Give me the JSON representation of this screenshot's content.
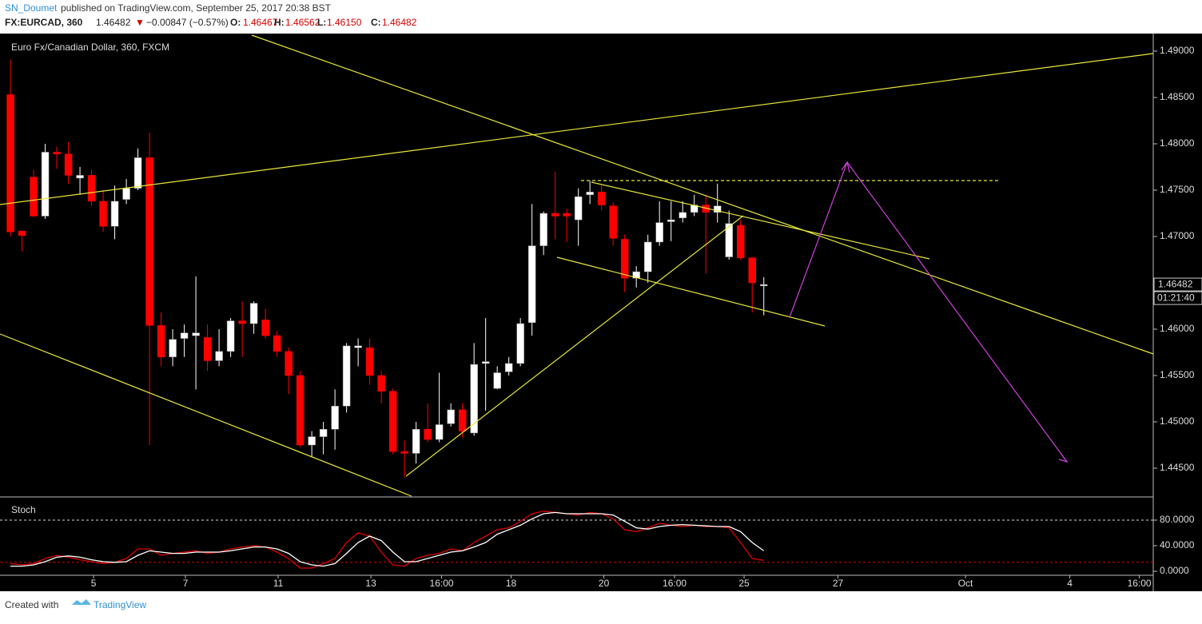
{
  "header": {
    "author": "SN_Doumet",
    "published": "published on TradingView.com, September 25, 2017 20:38 BST",
    "symbol": "FX:EURCAD, 360",
    "last": "1.46482",
    "arrow": "▼",
    "change": "−0.00847 (−0.57%)",
    "o_label": "O:",
    "o": "1.46467",
    "h_label": "H:",
    "h": "1.46562",
    "l_label": "L:",
    "l": "1.46150",
    "c_label": "C:",
    "c": "1.46482"
  },
  "footer": {
    "created": "Created with",
    "brand": "TradingView"
  },
  "chart_data": [
    {
      "type": "candlestick",
      "title": "Euro Fx/Canadian Dollar, 360, FXCM",
      "open": [
        1.4853,
        1.4706,
        1.4764,
        1.4722,
        1.4791,
        1.4789,
        1.4763,
        1.4766,
        1.4738,
        1.4711,
        1.474,
        1.4752,
        1.4785,
        1.4604,
        1.457,
        1.459,
        1.4593,
        1.4591,
        1.4566,
        1.4576,
        1.4609,
        1.4606,
        1.461,
        1.4593,
        1.4576,
        1.455,
        1.4475,
        1.4484,
        1.4492,
        1.4517,
        1.458,
        1.458,
        1.455,
        1.4533,
        1.4468,
        1.4466,
        1.4492,
        1.4481,
        1.4498,
        1.4513,
        1.4488,
        1.4563,
        1.4536,
        1.4554,
        1.4563,
        1.4607,
        1.469,
        1.4725,
        1.4725,
        1.4718,
        1.4745,
        1.4748,
        1.4733,
        1.4697,
        1.4655,
        1.4662,
        1.4694,
        1.4716,
        1.472,
        1.4726,
        1.4734,
        1.4726,
        1.4678,
        1.4712,
        1.4677,
        1.46467
      ],
      "high": [
        1.4891,
        1.4706,
        1.4772,
        1.48,
        1.4797,
        1.4802,
        1.4775,
        1.4772,
        1.475,
        1.4755,
        1.4762,
        1.4795,
        1.4812,
        1.4618,
        1.46,
        1.4605,
        1.4657,
        1.4605,
        1.46,
        1.4612,
        1.463,
        1.463,
        1.4622,
        1.4598,
        1.458,
        1.4555,
        1.449,
        1.45,
        1.4535,
        1.4585,
        1.459,
        1.459,
        1.4555,
        1.4536,
        1.448,
        1.45,
        1.452,
        1.4553,
        1.452,
        1.452,
        1.4585,
        1.4612,
        1.456,
        1.457,
        1.4612,
        1.4735,
        1.4727,
        1.477,
        1.473,
        1.4752,
        1.476,
        1.4755,
        1.4737,
        1.4702,
        1.4668,
        1.4702,
        1.4738,
        1.4738,
        1.4738,
        1.4745,
        1.4745,
        1.4757,
        1.4728,
        1.4718,
        1.4678,
        1.46562
      ],
      "low": [
        1.47,
        1.4684,
        1.4721,
        1.4719,
        1.4773,
        1.4757,
        1.4745,
        1.4733,
        1.4705,
        1.4697,
        1.4735,
        1.475,
        1.4475,
        1.456,
        1.456,
        1.457,
        1.4535,
        1.4555,
        1.456,
        1.457,
        1.457,
        1.4595,
        1.459,
        1.457,
        1.453,
        1.4473,
        1.4462,
        1.4465,
        1.447,
        1.451,
        1.456,
        1.454,
        1.452,
        1.4465,
        1.444,
        1.4455,
        1.4478,
        1.4478,
        1.4495,
        1.4483,
        1.4485,
        1.4512,
        1.4535,
        1.455,
        1.456,
        1.4593,
        1.468,
        1.4697,
        1.4694,
        1.469,
        1.4735,
        1.4728,
        1.469,
        1.464,
        1.4645,
        1.465,
        1.469,
        1.4695,
        1.4715,
        1.4722,
        1.466,
        1.4715,
        1.4675,
        1.4675,
        1.4618,
        1.4615
      ],
      "close": [
        1.4705,
        1.4701,
        1.4722,
        1.4791,
        1.4789,
        1.4766,
        1.4766,
        1.4738,
        1.4711,
        1.4738,
        1.4752,
        1.4785,
        1.4604,
        1.457,
        1.4589,
        1.4596,
        1.4596,
        1.4566,
        1.4576,
        1.4609,
        1.4606,
        1.4628,
        1.4593,
        1.4576,
        1.455,
        1.4475,
        1.4484,
        1.4492,
        1.4517,
        1.4582,
        1.4582,
        1.455,
        1.4533,
        1.4468,
        1.4466,
        1.4492,
        1.4481,
        1.4497,
        1.4513,
        1.449,
        1.4562,
        1.4565,
        1.4553,
        1.4563,
        1.4606,
        1.469,
        1.4725,
        1.4722,
        1.4722,
        1.4743,
        1.4748,
        1.4734,
        1.4698,
        1.4655,
        1.4662,
        1.4694,
        1.4715,
        1.4718,
        1.4726,
        1.4734,
        1.4726,
        1.4733,
        1.4714,
        1.4677,
        1.465,
        1.46482
      ],
      "up_color": "#ffffff",
      "down_color": "#ff0000",
      "ylim": [
        1.441983,
        1.491724
      ],
      "yticks": [
        {
          "value": 1.49,
          "label": "1.49000"
        },
        {
          "value": 1.485,
          "label": "1.48500"
        },
        {
          "value": 1.48,
          "label": "1.48000"
        },
        {
          "value": 1.475,
          "label": "1.47500"
        },
        {
          "value": 1.47,
          "label": "1.47000"
        },
        {
          "value": 1.46,
          "label": "1.46000"
        },
        {
          "value": 1.455,
          "label": "1.45500"
        },
        {
          "value": 1.45,
          "label": "1.45000"
        },
        {
          "value": 1.445,
          "label": "1.44500"
        }
      ],
      "last_price_label": "1.46482",
      "countdown": "01:21:40",
      "xlim": [
        -0.9,
        98.6
      ],
      "xticks": [
        {
          "value": 7.17,
          "label": "5"
        },
        {
          "value": 15.1,
          "label": "7"
        },
        {
          "value": 23.1,
          "label": "11"
        },
        {
          "value": 31.1,
          "label": "13"
        },
        {
          "value": 37.2,
          "label": "16:00"
        },
        {
          "value": 43.2,
          "label": "18"
        },
        {
          "value": 51.2,
          "label": "20"
        },
        {
          "value": 57.3,
          "label": "16:00"
        },
        {
          "value": 63.3,
          "label": "25"
        },
        {
          "value": 71.4,
          "label": "27"
        },
        {
          "value": 82.4,
          "label": "Oct"
        },
        {
          "value": 91.4,
          "label": "4"
        },
        {
          "value": 97.4,
          "label": "16:00"
        }
      ]
    },
    {
      "type": "line",
      "title": "Stoch",
      "series": [
        {
          "name": "%K",
          "color": "#e00000",
          "values": [
            12,
            10,
            12,
            20,
            25,
            22,
            18,
            15,
            12,
            14,
            20,
            35,
            35,
            25,
            28,
            30,
            32,
            28,
            30,
            35,
            38,
            40,
            38,
            30,
            20,
            5,
            5,
            12,
            20,
            45,
            60,
            55,
            30,
            10,
            8,
            20,
            25,
            28,
            35,
            32,
            45,
            55,
            65,
            68,
            78,
            90,
            94,
            92,
            90,
            88,
            92,
            90,
            82,
            65,
            62,
            68,
            75,
            72,
            70,
            72,
            70,
            70,
            68,
            45,
            20,
            17
          ]
        },
        {
          "name": "%D",
          "color": "#ffffff",
          "values": [
            8,
            8,
            10,
            15,
            22,
            24,
            22,
            18,
            15,
            14,
            15,
            25,
            32,
            30,
            28,
            28,
            30,
            30,
            30,
            32,
            35,
            38,
            38,
            35,
            28,
            15,
            10,
            8,
            12,
            28,
            45,
            55,
            48,
            30,
            15,
            15,
            20,
            25,
            30,
            32,
            38,
            45,
            58,
            65,
            72,
            82,
            90,
            92,
            90,
            90,
            90,
            90,
            88,
            78,
            68,
            66,
            70,
            72,
            73,
            72,
            71,
            70,
            70,
            62,
            45,
            32
          ]
        }
      ],
      "bands": [
        80,
        14
      ],
      "ylim": [
        -6.25,
        108.75
      ],
      "yticks": [
        {
          "value": 80,
          "label": "80.0000"
        },
        {
          "value": 40,
          "label": "40.0000"
        },
        {
          "value": 0,
          "label": "0.0000"
        }
      ]
    }
  ]
}
